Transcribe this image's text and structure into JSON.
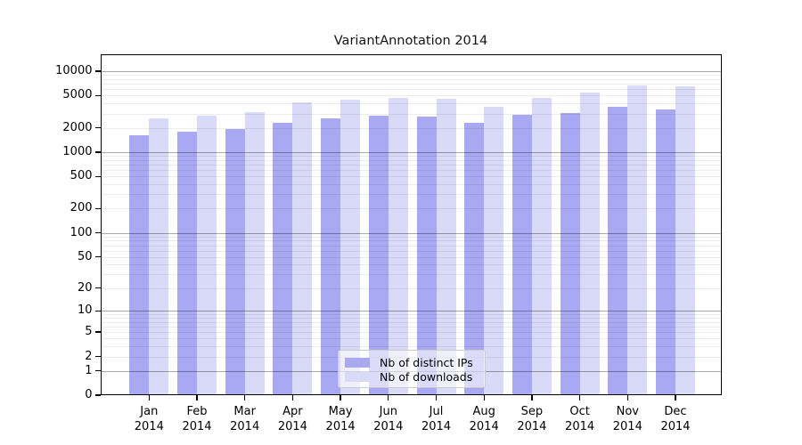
{
  "title": "VariantAnnotation 2014",
  "chart_data": {
    "type": "bar",
    "title": "VariantAnnotation 2014",
    "categories": [
      "Jan",
      "Feb",
      "Mar",
      "Apr",
      "May",
      "Jun",
      "Jul",
      "Aug",
      "Sep",
      "Oct",
      "Nov",
      "Dec"
    ],
    "category_year": "2014",
    "series": [
      {
        "name": "Nb of distinct IPs",
        "color": "#a8a8f3",
        "values": [
          1600,
          1810,
          1950,
          2330,
          2630,
          2840,
          2770,
          2320,
          2900,
          3030,
          3590,
          3350
        ]
      },
      {
        "name": "Nb of downloads",
        "color": "#d9d9f8",
        "values": [
          2600,
          2840,
          3100,
          4140,
          4500,
          4700,
          4540,
          3590,
          4650,
          5380,
          6640,
          6580
        ]
      }
    ],
    "y_axis": {
      "scale": "log10(1+value)",
      "tick_values": [
        0,
        1,
        2,
        5,
        10,
        20,
        50,
        100,
        200,
        500,
        1000,
        2000,
        5000,
        10000
      ],
      "major_gridline_values": [
        1,
        10,
        100,
        1000,
        10000
      ],
      "minor_gridline_multipliers": [
        2,
        3,
        4,
        5,
        6,
        7,
        8,
        9
      ],
      "top_value": 16000
    },
    "x_axis": {
      "tick_label_lines": 2
    },
    "legend": {
      "position": "bottom-center",
      "entries": [
        "Nb of distinct IPs",
        "Nb of downloads"
      ]
    },
    "grid": true
  },
  "colors": {
    "bar_distinct_ips": "#a8a8f3",
    "bar_downloads": "#d9d9f8",
    "major_gridline": "rgba(0,0,0,0.34)",
    "minor_gridline": "rgba(0,0,0,0.075)",
    "axis_line": "#000000",
    "legend_border": "#cccccc",
    "title_text": "#141414"
  }
}
